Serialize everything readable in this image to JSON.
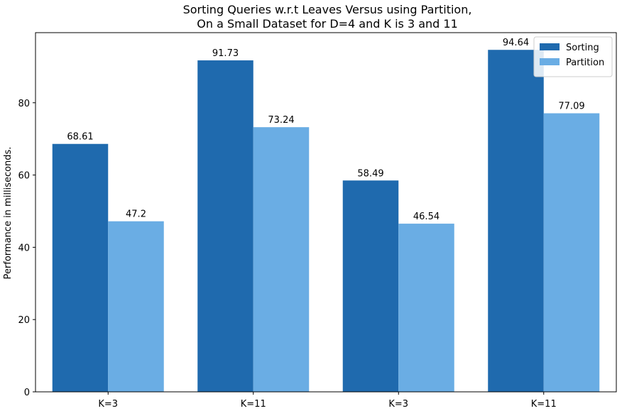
{
  "chart_data": {
    "type": "bar",
    "title_lines": [
      "Sorting Queries w.r.t Leaves Versus using Partition,",
      "On a Small Dataset for D=4 and K is 3 and 11"
    ],
    "xlabel": "",
    "ylabel": "Performance in milliseconds.",
    "categories": [
      "K=3",
      "K=11",
      "K=3",
      "K=11"
    ],
    "series": [
      {
        "name": "Sorting",
        "values": [
          68.61,
          91.73,
          58.49,
          94.64
        ],
        "labels": [
          "68.61",
          "91.73",
          "58.49",
          "94.64"
        ],
        "color": "#1f6aae"
      },
      {
        "name": "Partition",
        "values": [
          47.2,
          73.24,
          46.54,
          77.09
        ],
        "labels": [
          "47.2",
          "73.24",
          "46.54",
          "77.09"
        ],
        "color": "#6aade4"
      }
    ],
    "ylim": [
      0,
      99.4
    ],
    "yticks": [
      0,
      20,
      40,
      60,
      80
    ],
    "grid": false,
    "legend_position": "top-right"
  }
}
